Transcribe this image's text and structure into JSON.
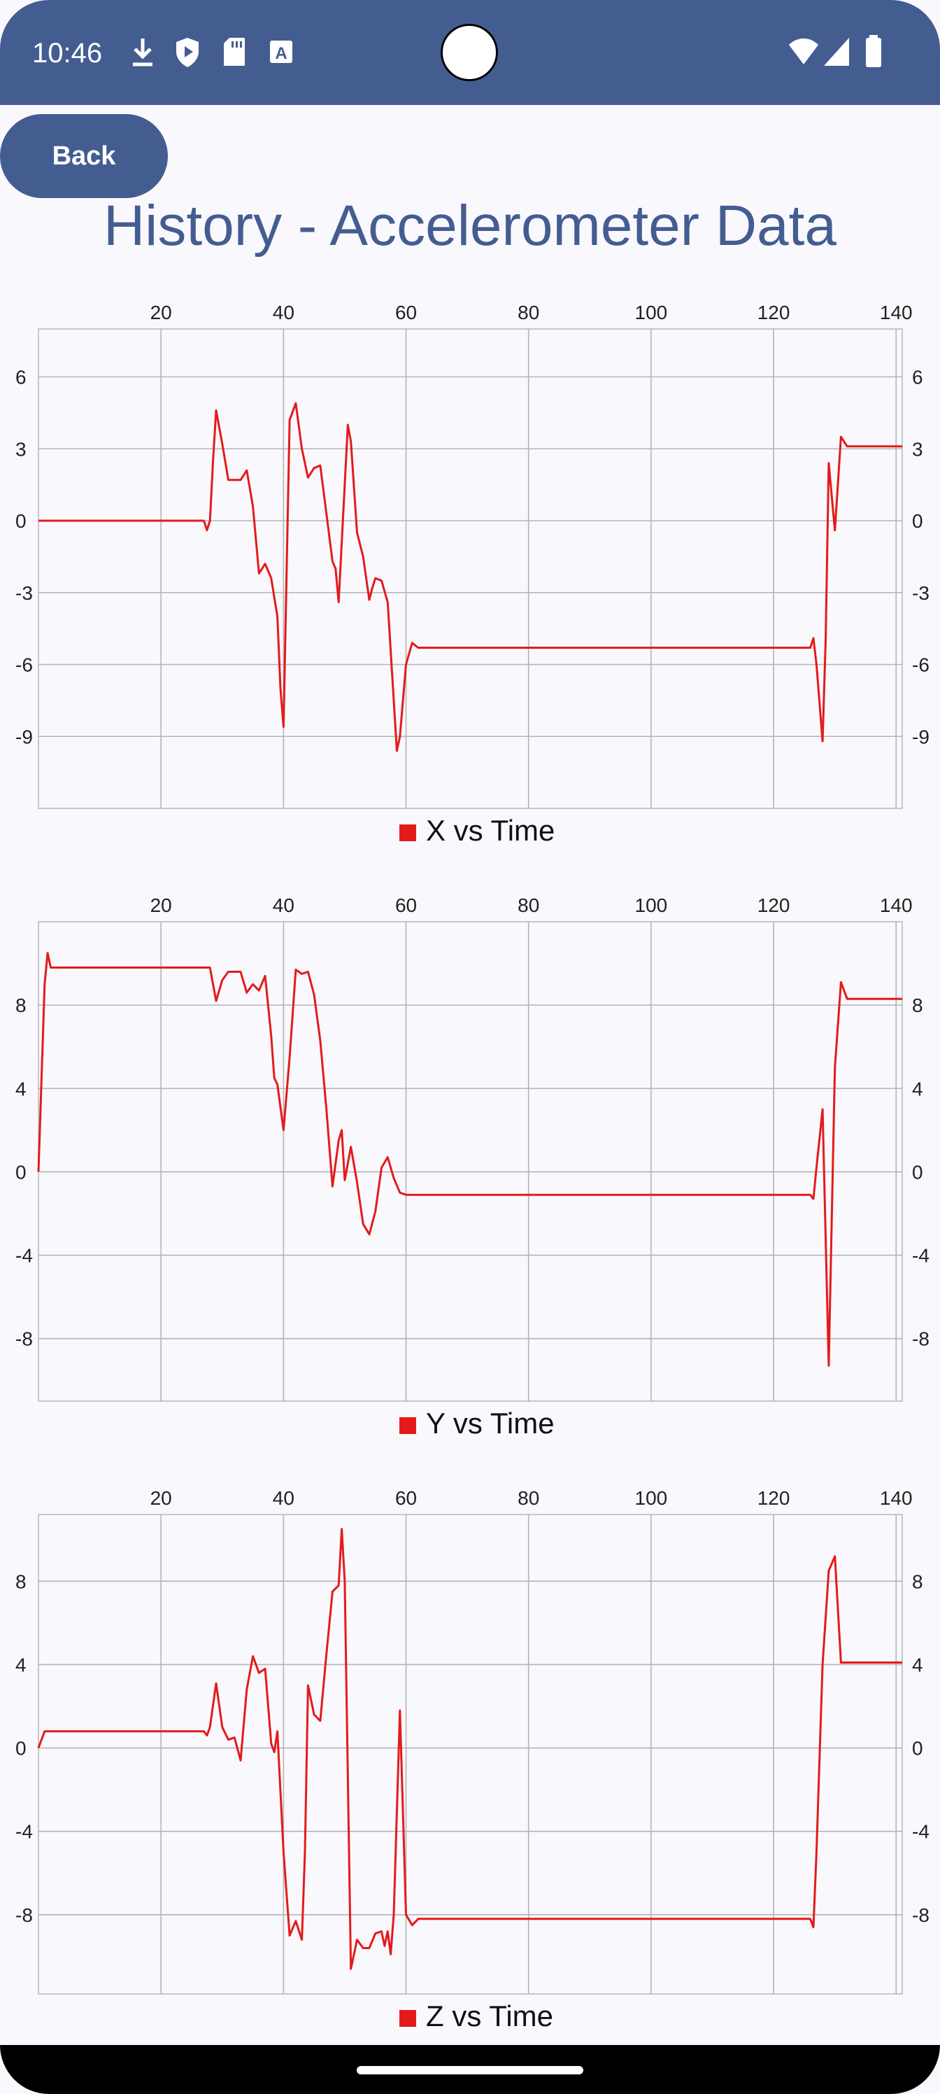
{
  "status_bar": {
    "time": "10:46",
    "left_icons": [
      "download-icon",
      "shield-play-icon",
      "sd-card-icon",
      "font-a-icon"
    ],
    "right_icons": [
      "wifi-icon",
      "signal-icon",
      "battery-icon"
    ],
    "color": "#445d91"
  },
  "back_button": {
    "label": "Back"
  },
  "page": {
    "title": "History - Accelerometer Data",
    "accent": "#445d91"
  },
  "chart_data": [
    {
      "type": "line",
      "legend": "X vs Time",
      "legend_position": "bottom-center",
      "color": "#e41a1a",
      "grid": true,
      "xlim": [
        0,
        141
      ],
      "ylim": [
        -12,
        8
      ],
      "x_ticks": [
        20,
        40,
        60,
        80,
        100,
        120,
        140
      ],
      "y_ticks": [
        6,
        3,
        0,
        -3,
        -6,
        -9
      ],
      "y_tick_labels": [
        "6",
        "3",
        "0",
        "-3",
        "-6",
        "-9"
      ],
      "x": [
        0,
        26,
        27,
        27.5,
        28,
        28.5,
        29,
        30,
        31,
        32,
        33,
        34,
        35,
        36,
        37,
        38,
        39,
        39.5,
        40,
        41,
        42,
        43,
        44,
        45,
        46,
        47,
        48,
        48.5,
        49,
        50,
        50.5,
        51,
        52,
        53,
        54,
        54.5,
        55,
        56,
        57,
        58,
        58.5,
        59,
        60,
        61,
        62,
        125,
        126,
        126.5,
        127,
        128,
        128.5,
        129,
        130,
        131,
        132,
        141
      ],
      "y": [
        0,
        0,
        0,
        -0.4,
        0,
        2.5,
        4.6,
        3.2,
        1.7,
        1.7,
        1.7,
        2.1,
        0.6,
        -2.2,
        -1.8,
        -2.4,
        -4.0,
        -7.0,
        -8.6,
        4.2,
        4.9,
        3.0,
        1.8,
        2.2,
        2.3,
        0.3,
        -1.7,
        -2.0,
        -3.4,
        1.5,
        4.0,
        3.3,
        -0.5,
        -1.5,
        -3.3,
        -2.8,
        -2.4,
        -2.5,
        -3.4,
        -7.5,
        -9.6,
        -9.0,
        -6.0,
        -5.1,
        -5.3,
        -5.3,
        -5.3,
        -4.9,
        -6.0,
        -9.2,
        -5.0,
        2.4,
        -0.4,
        3.5,
        3.1,
        3.1
      ]
    },
    {
      "type": "line",
      "legend": "Y vs Time",
      "legend_position": "bottom-center",
      "color": "#e41a1a",
      "grid": true,
      "xlim": [
        0,
        141
      ],
      "ylim": [
        -11,
        12
      ],
      "x_ticks": [
        20,
        40,
        60,
        80,
        100,
        120,
        140
      ],
      "y_ticks": [
        8,
        4,
        0,
        -4,
        -8
      ],
      "y_tick_labels": [
        "8",
        "4",
        "0",
        "-4",
        "-8"
      ],
      "x": [
        0,
        1,
        1.5,
        2,
        3,
        27,
        28,
        29,
        30,
        31,
        32,
        33,
        34,
        35,
        36,
        37,
        38,
        38.5,
        39,
        40,
        41,
        42,
        43,
        44,
        45,
        46,
        47,
        48,
        49,
        49.5,
        50,
        51,
        52,
        53,
        54,
        55,
        56,
        57,
        58,
        59,
        60,
        61,
        62,
        125,
        126,
        126.5,
        127,
        128,
        129,
        130,
        131,
        132,
        141
      ],
      "y": [
        0,
        9,
        10.5,
        9.8,
        9.8,
        9.8,
        9.8,
        8.2,
        9.2,
        9.6,
        9.6,
        9.6,
        8.6,
        9.0,
        8.7,
        9.4,
        6.5,
        4.5,
        4.2,
        2.0,
        5.5,
        9.7,
        9.5,
        9.6,
        8.5,
        6.3,
        3.0,
        -0.7,
        1.5,
        2.0,
        -0.4,
        1.2,
        -0.5,
        -2.5,
        -3.0,
        -1.9,
        0.2,
        0.7,
        -0.3,
        -1.0,
        -1.1,
        -1.1,
        -1.1,
        -1.1,
        -1.1,
        -1.3,
        0.2,
        3.0,
        -9.3,
        5.0,
        9.1,
        8.3,
        8.3
      ]
    },
    {
      "type": "line",
      "legend": "Z vs Time",
      "legend_position": "bottom-center",
      "color": "#e41a1a",
      "grid": true,
      "xlim": [
        0,
        141
      ],
      "ylim": [
        -11.8,
        11.2
      ],
      "x_ticks": [
        20,
        40,
        60,
        80,
        100,
        120,
        140
      ],
      "y_ticks": [
        8,
        4,
        0,
        -4,
        -8
      ],
      "y_tick_labels": [
        "8",
        "4",
        "0",
        "-4",
        "-8"
      ],
      "x": [
        0,
        1,
        27,
        27.5,
        28,
        29,
        30,
        31,
        32,
        33,
        34,
        35,
        36,
        37,
        38,
        38.5,
        39,
        40,
        41,
        42,
        43,
        43.5,
        44,
        45,
        46,
        47,
        48,
        49,
        49.5,
        50,
        51,
        52,
        53,
        54,
        55,
        56,
        56.5,
        57,
        57.5,
        58,
        59,
        60,
        61,
        62,
        125,
        126,
        126.5,
        127,
        128,
        129,
        130,
        131,
        141
      ],
      "y": [
        0,
        0.8,
        0.8,
        0.6,
        1.0,
        3.1,
        1.0,
        0.4,
        0.5,
        -0.6,
        2.8,
        4.4,
        3.6,
        3.8,
        0.2,
        -0.2,
        0.8,
        -5.0,
        -9.0,
        -8.3,
        -9.2,
        -5.0,
        3.0,
        1.6,
        1.3,
        4.5,
        7.5,
        7.8,
        10.5,
        8.0,
        -10.6,
        -9.2,
        -9.6,
        -9.6,
        -8.9,
        -8.8,
        -9.5,
        -8.8,
        -9.9,
        -8.0,
        1.8,
        -8.0,
        -8.5,
        -8.2,
        -8.2,
        -8.2,
        -8.6,
        -5.0,
        4.0,
        8.5,
        9.2,
        4.1,
        4.1
      ]
    }
  ]
}
